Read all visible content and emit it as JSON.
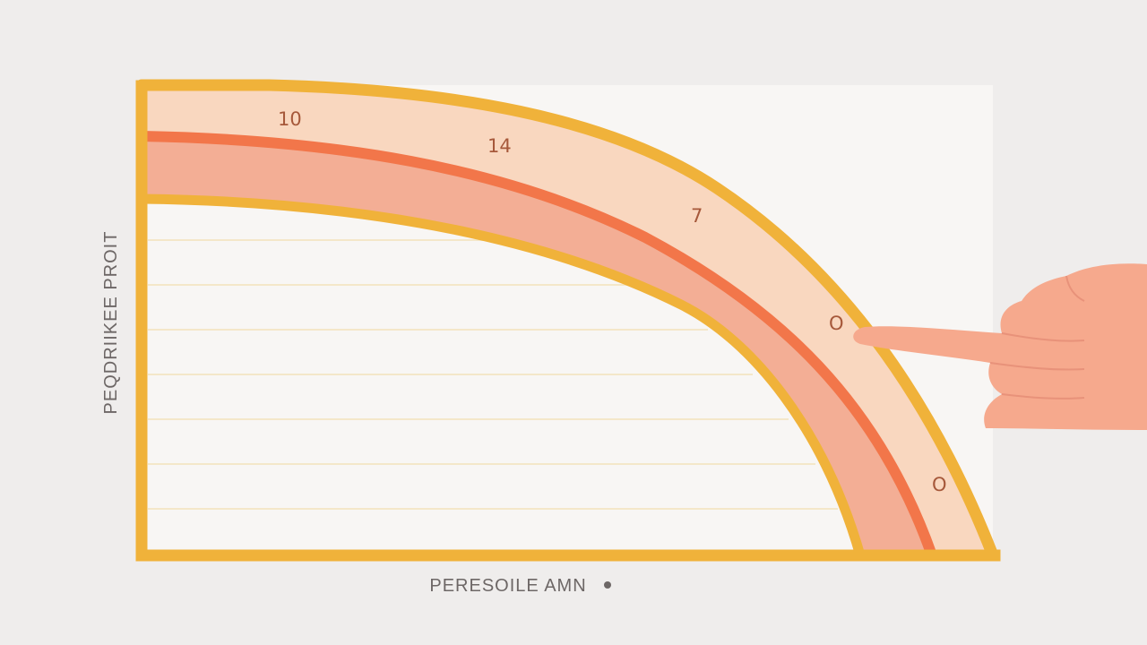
{
  "diagram": {
    "y_axis_label": "PEQDRIIKEE PROIT",
    "x_axis_label": "PERESOILE AMN",
    "x_axis_marker": "•",
    "curve_labels": [
      "10",
      "14",
      "7",
      "O",
      "O"
    ],
    "colors": {
      "background": "#efedec",
      "frame": "#f0b23a",
      "outer_band": "#f9d7bf",
      "inner_band": "#f3ae95",
      "center_line": "#f2764a",
      "hand": "#f6a98d",
      "grid": "#f4e7c9",
      "label_text": "#a6583a",
      "axis_text": "#6d6766"
    },
    "icons": {
      "pointer": "pointing-hand-icon"
    }
  }
}
